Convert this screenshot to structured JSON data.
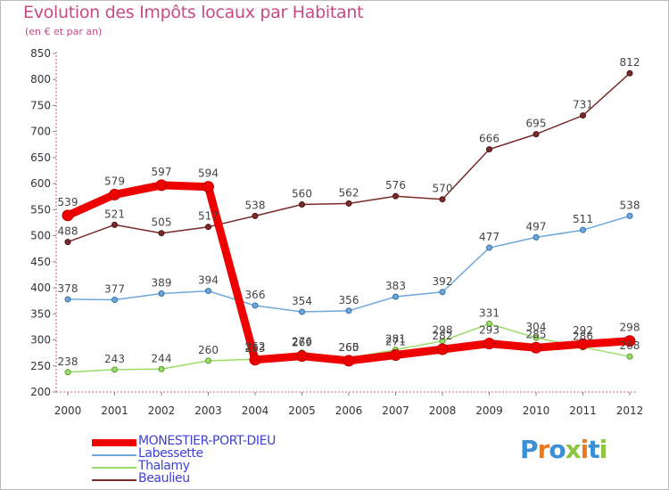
{
  "header": {
    "title": "Evolution des Impôts locaux par Habitant",
    "subtitle": "(en € et par an)"
  },
  "chart_data": {
    "type": "line",
    "title": "Evolution des Impôts locaux par Habitant",
    "subtitle": "(en € et par an)",
    "xlabel": "",
    "ylabel": "",
    "x": [
      2000,
      2001,
      2002,
      2003,
      2004,
      2005,
      2006,
      2007,
      2008,
      2009,
      2010,
      2011,
      2012
    ],
    "x_tick_labels": [
      "2000",
      "2001",
      "2002",
      "2003",
      "2004",
      "2005",
      "2006",
      "2007",
      "2008",
      "2009",
      "2010",
      "2011",
      "2012"
    ],
    "ylim": [
      200,
      850
    ],
    "y_ticks": [
      200,
      250,
      300,
      350,
      400,
      450,
      500,
      550,
      600,
      650,
      700,
      750,
      800,
      850
    ],
    "grid": false,
    "legend_position": "bottom-left",
    "series": [
      {
        "name": "MONESTIER-PORT-DIEU",
        "color": "#ee0000",
        "values": [
          539,
          579,
          597,
          594,
          262,
          269,
          260,
          271,
          282,
          293,
          285,
          292,
          298
        ]
      },
      {
        "name": "Labessette",
        "color": "#6fa8dc",
        "values": [
          378,
          377,
          389,
          394,
          366,
          354,
          356,
          383,
          392,
          477,
          497,
          511,
          538
        ]
      },
      {
        "name": "Thalamy",
        "color": "#99dd66",
        "values": [
          238,
          243,
          244,
          260,
          263,
          276,
          265,
          281,
          298,
          331,
          304,
          286,
          268
        ]
      },
      {
        "name": "Beaulieu",
        "color": "#7a2b2b",
        "values": [
          488,
          521,
          505,
          517,
          538,
          560,
          562,
          576,
          570,
          666,
          695,
          731,
          812
        ]
      }
    ]
  },
  "legend": {
    "items": [
      {
        "label": "MONESTIER-PORT-DIEU",
        "color": "#ee0000"
      },
      {
        "label": "Labessette",
        "color": "#6fa8dc"
      },
      {
        "label": "Thalamy",
        "color": "#99dd66"
      },
      {
        "label": "Beaulieu",
        "color": "#7a2b2b"
      }
    ]
  },
  "logo": {
    "letters": [
      {
        "char": "P",
        "color": "#3a8fd6"
      },
      {
        "char": "r",
        "color": "#f07a1a"
      },
      {
        "char": "o",
        "color": "#3a8fd6"
      },
      {
        "char": "x",
        "color": "#8cc63f"
      },
      {
        "char": "i",
        "color": "#f07a1a"
      },
      {
        "char": "t",
        "color": "#3a8fd6"
      },
      {
        "char": "i",
        "color": "#8cc63f"
      }
    ]
  }
}
